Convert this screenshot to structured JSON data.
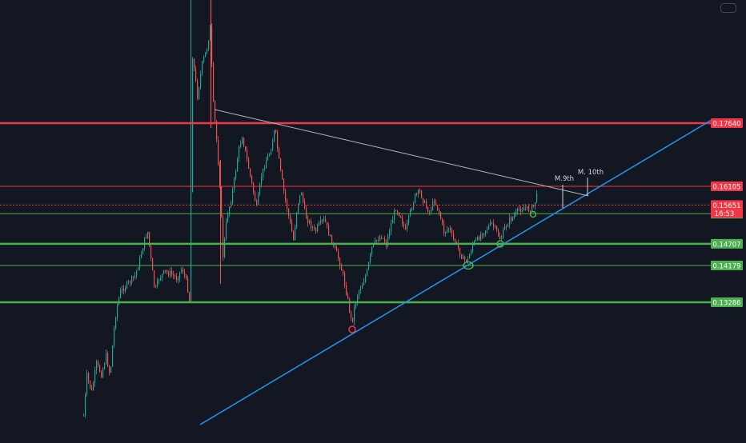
{
  "chart_data": {
    "type": "candlestick",
    "y_axis_side": "right",
    "up_color": "#26a69a",
    "down_color": "#ef5350",
    "price_levels": [
      {
        "name": "resistance-red",
        "value": 0.1764,
        "label": "0.17640",
        "color": "#f23645",
        "style": "solid-thick"
      },
      {
        "name": "resistance-thin",
        "value": 0.16105,
        "label": "0.16105",
        "color": "#f23645",
        "style": "solid-thin"
      },
      {
        "name": "support-1",
        "value": 0.15438,
        "label": "0.15438",
        "color": "#4caf50",
        "style": "solid-thin"
      },
      {
        "name": "support-2",
        "value": 0.14707,
        "label": "0.14707",
        "color": "#4caf50",
        "style": "solid-thick"
      },
      {
        "name": "support-3",
        "value": 0.14179,
        "label": "0.14179",
        "color": "#4caf50",
        "style": "solid-thin"
      },
      {
        "name": "support-4",
        "value": 0.13286,
        "label": "0.13286",
        "color": "#4caf50",
        "style": "solid-thick"
      }
    ],
    "current_price": {
      "value": 0.15651,
      "label": "0.15651",
      "countdown": "16:53",
      "color": "#f23645"
    },
    "annotations": [
      {
        "name": "m9-label",
        "text": "M.9th"
      },
      {
        "name": "m10-label",
        "text": "M. 10th"
      }
    ]
  },
  "colors": {
    "background": "#131722",
    "ascending_trendline": "#2196f3",
    "descending_trendline": "#b2b5be",
    "circle_marker_green": "#4caf50",
    "circle_marker_red": "#f23645"
  },
  "toolbar": {
    "button_icon": "rounded-rect-icon"
  }
}
